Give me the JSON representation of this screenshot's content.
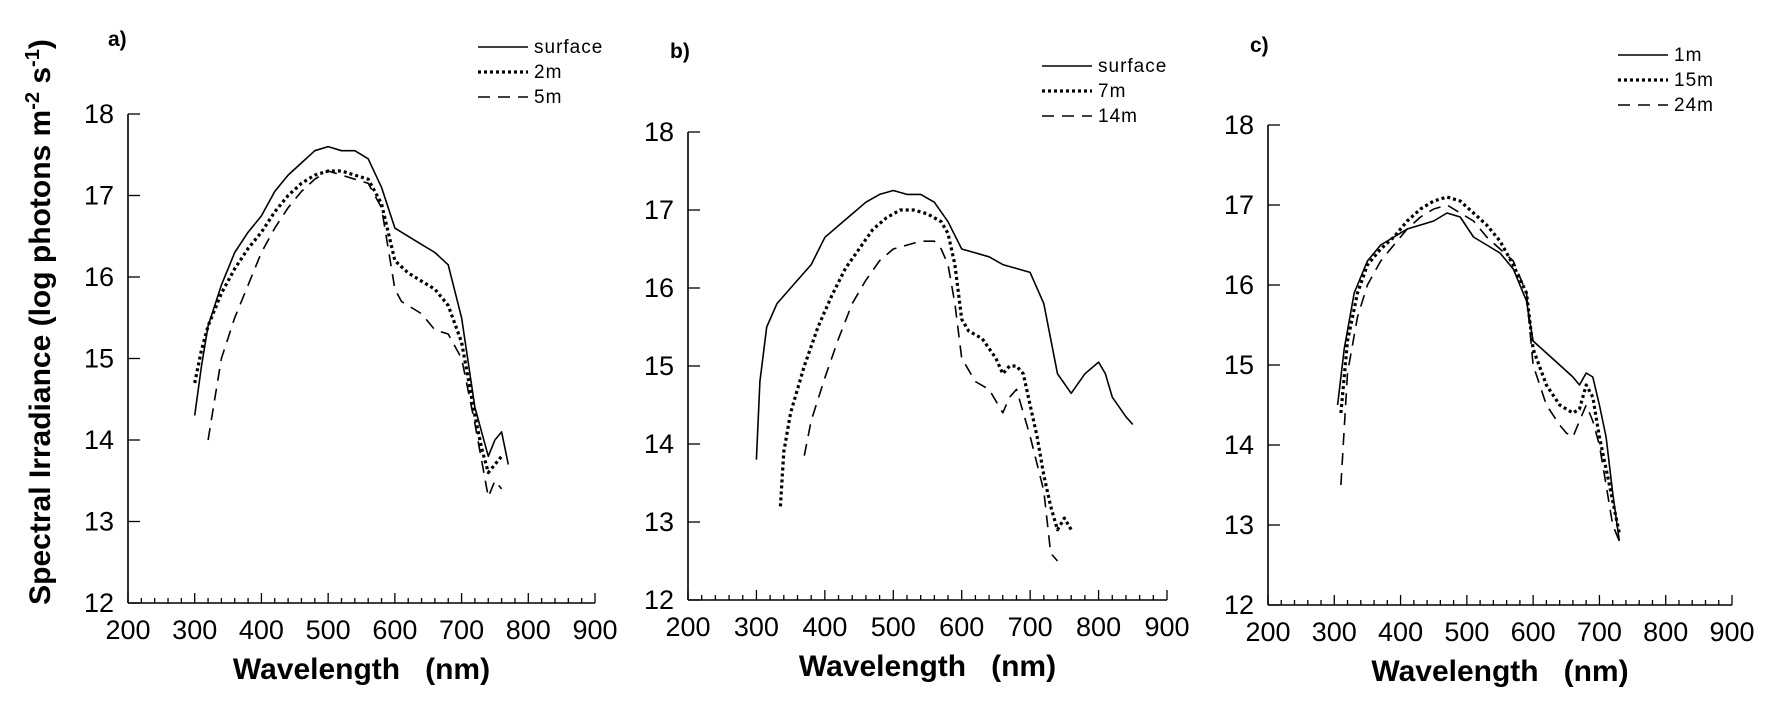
{
  "ylabel_parts": {
    "main": "Spectral Irradiance (log photons m",
    "exp1": "-2",
    "mid": " s",
    "exp2": "-1",
    "end": ")"
  },
  "chart_data": [
    {
      "type": "line",
      "panel": "a)",
      "xlabel": "Wavelength   (nm)",
      "xlim": [
        200,
        900
      ],
      "ylim": [
        12,
        18
      ],
      "xticks": [
        200,
        300,
        400,
        500,
        600,
        700,
        800,
        900
      ],
      "yticks": [
        12,
        13,
        14,
        15,
        16,
        17,
        18
      ],
      "legend": "top-right",
      "series": [
        {
          "name": "surface",
          "style": "solid",
          "x": [
            300,
            310,
            320,
            340,
            360,
            380,
            400,
            420,
            440,
            460,
            480,
            500,
            520,
            540,
            560,
            580,
            600,
            610,
            640,
            660,
            680,
            700,
            720,
            740,
            750,
            760,
            770
          ],
          "y": [
            14.3,
            14.9,
            15.4,
            15.9,
            16.3,
            16.55,
            16.75,
            17.05,
            17.25,
            17.4,
            17.55,
            17.6,
            17.55,
            17.55,
            17.45,
            17.1,
            16.6,
            16.55,
            16.4,
            16.3,
            16.15,
            15.5,
            14.4,
            13.8,
            14.0,
            14.1,
            13.7
          ]
        },
        {
          "name": "2m",
          "style": "dotted",
          "x": [
            300,
            310,
            320,
            340,
            360,
            380,
            400,
            420,
            440,
            460,
            480,
            500,
            520,
            540,
            560,
            580,
            600,
            620,
            640,
            660,
            680,
            700,
            720,
            730,
            740,
            750,
            760
          ],
          "y": [
            14.7,
            15.1,
            15.4,
            15.8,
            16.1,
            16.35,
            16.55,
            16.8,
            17.0,
            17.15,
            17.25,
            17.3,
            17.3,
            17.25,
            17.2,
            16.9,
            16.2,
            16.05,
            15.95,
            15.85,
            15.65,
            15.2,
            14.3,
            13.9,
            13.6,
            13.7,
            13.8
          ]
        },
        {
          "name": "5m",
          "style": "dashed",
          "x": [
            320,
            330,
            340,
            360,
            380,
            400,
            420,
            440,
            460,
            480,
            500,
            520,
            540,
            560,
            580,
            600,
            610,
            640,
            660,
            680,
            700,
            720,
            740,
            750,
            760
          ],
          "y": [
            14.0,
            14.5,
            15.0,
            15.5,
            15.9,
            16.3,
            16.6,
            16.85,
            17.05,
            17.2,
            17.3,
            17.25,
            17.2,
            17.15,
            16.85,
            15.85,
            15.7,
            15.55,
            15.35,
            15.3,
            15.0,
            14.2,
            13.3,
            13.5,
            13.4
          ]
        }
      ]
    },
    {
      "type": "line",
      "panel": "b)",
      "xlabel": "Wavelength   (nm)",
      "xlim": [
        200,
        900
      ],
      "ylim": [
        12,
        18
      ],
      "xticks": [
        200,
        300,
        400,
        500,
        600,
        700,
        800,
        900
      ],
      "yticks": [
        12,
        13,
        14,
        15,
        16,
        17,
        18
      ],
      "legend": "top-right",
      "series": [
        {
          "name": "surface",
          "style": "solid",
          "x": [
            300,
            305,
            315,
            330,
            350,
            380,
            400,
            420,
            440,
            460,
            480,
            500,
            520,
            540,
            560,
            580,
            600,
            620,
            640,
            660,
            680,
            700,
            720,
            740,
            760,
            780,
            800,
            810,
            820,
            840,
            850
          ],
          "y": [
            13.8,
            14.8,
            15.5,
            15.8,
            16.0,
            16.3,
            16.65,
            16.8,
            16.95,
            17.1,
            17.2,
            17.25,
            17.2,
            17.2,
            17.1,
            16.85,
            16.5,
            16.45,
            16.4,
            16.3,
            16.25,
            16.2,
            15.8,
            14.9,
            14.65,
            14.9,
            15.05,
            14.9,
            14.6,
            14.35,
            14.25
          ]
        },
        {
          "name": "7m",
          "style": "dotted",
          "x": [
            335,
            340,
            350,
            370,
            390,
            410,
            430,
            450,
            470,
            490,
            510,
            530,
            550,
            570,
            580,
            590,
            600,
            610,
            630,
            650,
            660,
            670,
            680,
            690,
            700,
            710,
            720,
            730,
            740,
            750,
            760
          ],
          "y": [
            13.2,
            13.9,
            14.4,
            15.0,
            15.5,
            15.9,
            16.25,
            16.5,
            16.75,
            16.9,
            17.0,
            17.0,
            16.95,
            16.85,
            16.7,
            16.3,
            15.6,
            15.45,
            15.35,
            15.1,
            14.9,
            15.0,
            15.0,
            14.9,
            14.5,
            14.1,
            13.6,
            13.2,
            12.9,
            13.05,
            12.9
          ]
        },
        {
          "name": "14m",
          "style": "dashed",
          "x": [
            370,
            380,
            400,
            420,
            440,
            460,
            480,
            500,
            520,
            540,
            560,
            570,
            580,
            590,
            600,
            620,
            640,
            660,
            670,
            680,
            690,
            700,
            720,
            730,
            740
          ],
          "y": [
            13.85,
            14.3,
            14.85,
            15.35,
            15.8,
            16.1,
            16.35,
            16.5,
            16.55,
            16.6,
            16.6,
            16.5,
            16.3,
            15.8,
            15.1,
            14.8,
            14.7,
            14.4,
            14.6,
            14.7,
            14.4,
            14.1,
            13.4,
            12.6,
            12.5
          ]
        }
      ]
    },
    {
      "type": "line",
      "panel": "c)",
      "xlabel": "Wavelength   (nm)",
      "xlim": [
        200,
        900
      ],
      "ylim": [
        12,
        18
      ],
      "xticks": [
        200,
        300,
        400,
        500,
        600,
        700,
        800,
        900
      ],
      "yticks": [
        12,
        13,
        14,
        15,
        16,
        17,
        18
      ],
      "legend": "top-right",
      "series": [
        {
          "name": "1m",
          "style": "solid",
          "x": [
            305,
            315,
            330,
            350,
            370,
            390,
            410,
            430,
            450,
            470,
            490,
            510,
            530,
            550,
            570,
            590,
            600,
            620,
            640,
            660,
            670,
            680,
            690,
            700,
            710,
            720,
            730
          ],
          "y": [
            14.5,
            15.2,
            15.9,
            16.3,
            16.5,
            16.6,
            16.7,
            16.75,
            16.8,
            16.9,
            16.85,
            16.6,
            16.5,
            16.4,
            16.2,
            15.8,
            15.3,
            15.15,
            15.0,
            14.85,
            14.75,
            14.9,
            14.85,
            14.5,
            14.1,
            13.4,
            12.8
          ]
        },
        {
          "name": "15m",
          "style": "dotted",
          "x": [
            310,
            320,
            335,
            350,
            370,
            390,
            410,
            430,
            450,
            470,
            490,
            510,
            530,
            550,
            570,
            590,
            600,
            620,
            640,
            660,
            670,
            680,
            690,
            700,
            710,
            720,
            730
          ],
          "y": [
            14.4,
            15.3,
            15.9,
            16.25,
            16.45,
            16.6,
            16.8,
            16.95,
            17.05,
            17.1,
            17.05,
            16.9,
            16.75,
            16.55,
            16.25,
            15.9,
            15.2,
            14.75,
            14.5,
            14.4,
            14.45,
            14.75,
            14.6,
            14.1,
            13.7,
            13.3,
            12.9
          ]
        },
        {
          "name": "24m",
          "style": "dashed",
          "x": [
            310,
            320,
            335,
            350,
            370,
            390,
            410,
            430,
            450,
            470,
            490,
            510,
            530,
            550,
            570,
            590,
            600,
            620,
            640,
            650,
            660,
            670,
            680,
            690,
            700,
            710,
            720,
            730
          ],
          "y": [
            13.5,
            14.9,
            15.6,
            16.0,
            16.3,
            16.5,
            16.7,
            16.85,
            16.95,
            17.0,
            16.9,
            16.8,
            16.6,
            16.45,
            16.3,
            15.9,
            15.0,
            14.5,
            14.25,
            14.15,
            14.1,
            14.3,
            14.5,
            14.3,
            14.0,
            13.5,
            13.0,
            12.8
          ]
        }
      ]
    }
  ]
}
